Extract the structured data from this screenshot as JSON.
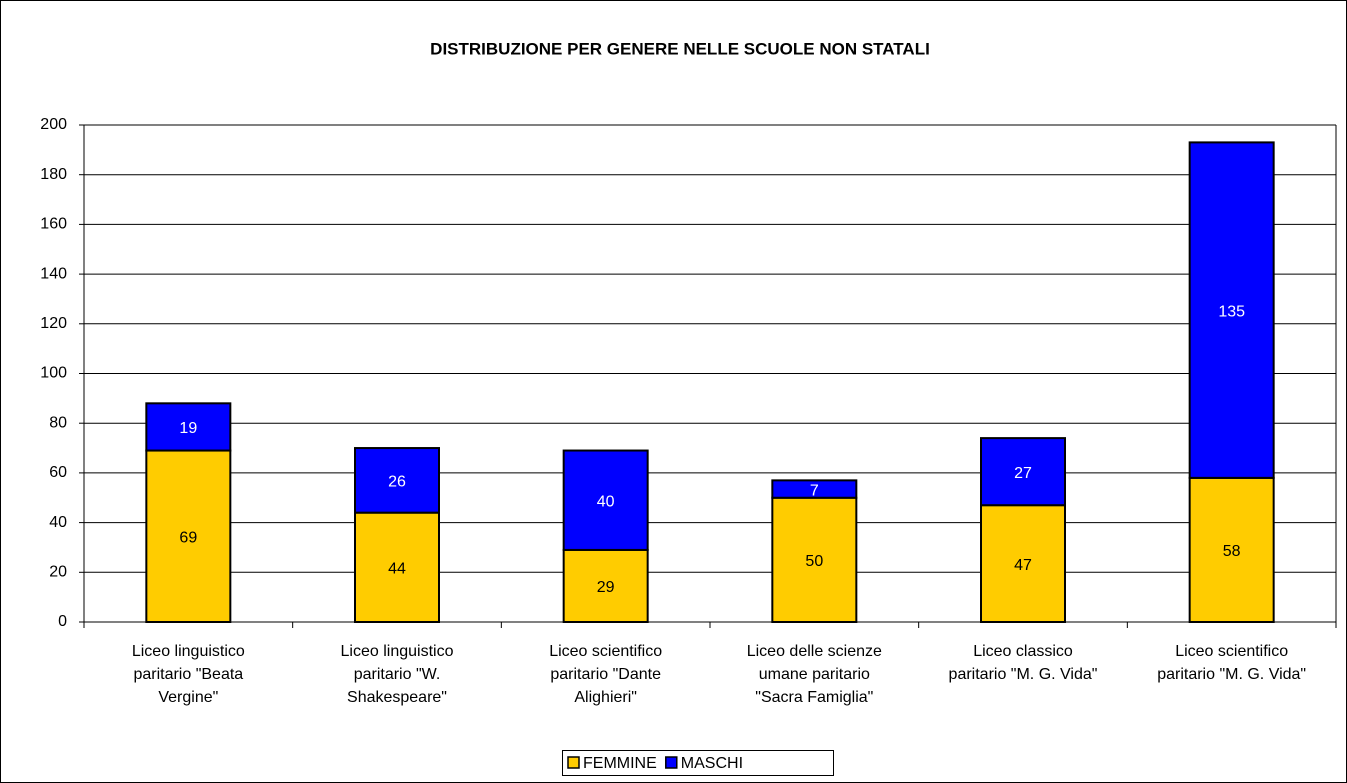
{
  "chart_data": {
    "type": "stacked_bar",
    "title": "DISTRIBUZIONE PER GENERE NELLE SCUOLE NON STATALI",
    "categories": [
      "Liceo linguistico\nparitario \"Beata\nVergine\"",
      "Liceo linguistico\nparitario \"W.\nShakespeare\"",
      "Liceo scientifico\nparitario \"Dante\nAlighieri\"",
      "Liceo delle scienze\numane paritario\n\"Sacra Famiglia\"",
      "Liceo classico\nparitario \"M. G. Vida\"",
      "Liceo scientifico\nparitario \"M. G. Vida\""
    ],
    "series": [
      {
        "name": "FEMMINE",
        "color": "#ffcc00",
        "label_color": "#000000",
        "values": [
          69,
          44,
          29,
          50,
          47,
          58
        ]
      },
      {
        "name": "MASCHI",
        "color": "#0000ff",
        "label_color": "#ffffff",
        "values": [
          19,
          26,
          40,
          7,
          27,
          135
        ]
      }
    ],
    "ylim": [
      0,
      200
    ],
    "yticks": [
      0,
      20,
      40,
      60,
      80,
      100,
      120,
      140,
      160,
      180,
      200
    ],
    "grid": true,
    "legend": "bottom"
  }
}
